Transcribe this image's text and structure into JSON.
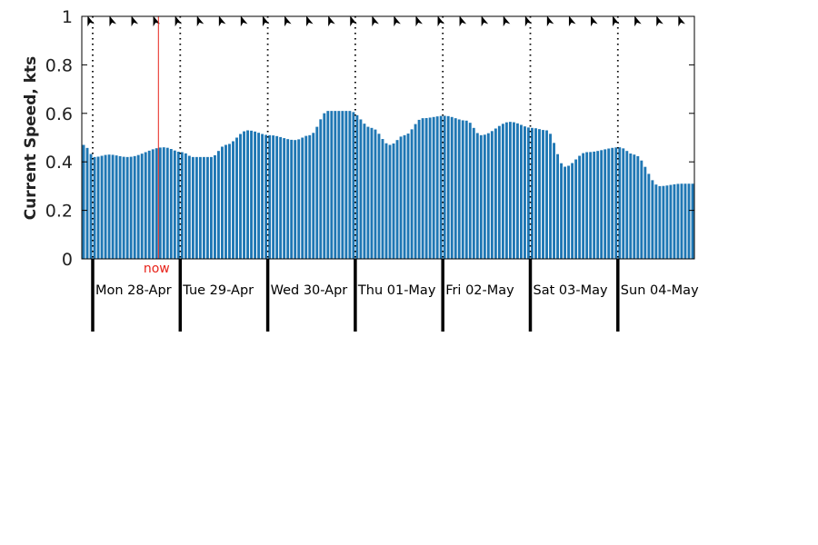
{
  "colors": {
    "bar": "#1f77b4",
    "now_line": "#e8231a",
    "axis": "#000000",
    "background": "#ffffff"
  },
  "chart_data": {
    "type": "bar",
    "ylabel": "Current Speed, kts",
    "ylim": [
      0,
      1
    ],
    "yticks": [
      "0",
      "0.2",
      "0.4",
      "0.6",
      "0.8",
      "1"
    ],
    "ytick_values": [
      0,
      0.2,
      0.4,
      0.6,
      0.8,
      1
    ],
    "grid": false,
    "legend": "none",
    "time_axis": {
      "start": "2025-04-27T21:00",
      "end": "2025-05-04T21:00",
      "step_hours": 1
    },
    "day_labels": [
      "Mon 28-Apr",
      "Tue 29-Apr",
      "Wed 30-Apr",
      "Thu 01-May",
      "Fri 02-May",
      "Sat 03-May",
      "Sun 04-May"
    ],
    "day_boundaries": [
      "2025-04-28T00:00",
      "2025-04-29T00:00",
      "2025-04-30T00:00",
      "2025-05-01T00:00",
      "2025-05-02T00:00",
      "2025-05-03T00:00",
      "2025-05-04T00:00"
    ],
    "now": {
      "label": "now",
      "time": "2025-04-28T18:00"
    },
    "direction_arrows": {
      "count": 28,
      "symbol": "arrowhead",
      "placement": "top"
    },
    "speed_profile": {
      "interpolation": "cosine",
      "points": [
        {
          "time": "2025-04-27T21:00",
          "speed": 0.47
        },
        {
          "time": "2025-04-28T00:00",
          "speed": 0.42
        },
        {
          "time": "2025-04-28T04:00",
          "speed": 0.43
        },
        {
          "time": "2025-04-28T09:00",
          "speed": 0.42
        },
        {
          "time": "2025-04-28T19:00",
          "speed": 0.46
        },
        {
          "time": "2025-04-29T00:00",
          "speed": 0.44
        },
        {
          "time": "2025-04-29T03:00",
          "speed": 0.42
        },
        {
          "time": "2025-04-29T08:00",
          "speed": 0.42
        },
        {
          "time": "2025-04-29T12:00",
          "speed": 0.47
        },
        {
          "time": "2025-04-29T18:00",
          "speed": 0.53
        },
        {
          "time": "2025-04-30T00:00",
          "speed": 0.51
        },
        {
          "time": "2025-04-30T07:00",
          "speed": 0.49
        },
        {
          "time": "2025-04-30T11:00",
          "speed": 0.51
        },
        {
          "time": "2025-04-30T16:00",
          "speed": 0.61
        },
        {
          "time": "2025-04-30T22:00",
          "speed": 0.61
        },
        {
          "time": "2025-05-01T04:00",
          "speed": 0.54
        },
        {
          "time": "2025-05-01T09:00",
          "speed": 0.47
        },
        {
          "time": "2025-05-01T13:00",
          "speed": 0.51
        },
        {
          "time": "2025-05-01T18:00",
          "speed": 0.58
        },
        {
          "time": "2025-05-02T00:00",
          "speed": 0.59
        },
        {
          "time": "2025-05-02T06:00",
          "speed": 0.57
        },
        {
          "time": "2025-05-02T10:00",
          "speed": 0.51
        },
        {
          "time": "2025-05-02T18:00",
          "speed": 0.565
        },
        {
          "time": "2025-05-03T00:00",
          "speed": 0.54
        },
        {
          "time": "2025-05-03T04:00",
          "speed": 0.53
        },
        {
          "time": "2025-05-03T09:00",
          "speed": 0.38
        },
        {
          "time": "2025-05-03T15:00",
          "speed": 0.44
        },
        {
          "time": "2025-05-04T00:00",
          "speed": 0.46
        },
        {
          "time": "2025-05-04T04:00",
          "speed": 0.43
        },
        {
          "time": "2025-05-04T11:00",
          "speed": 0.3
        },
        {
          "time": "2025-05-04T17:00",
          "speed": 0.31
        },
        {
          "time": "2025-05-04T21:00",
          "speed": 0.31
        }
      ]
    }
  }
}
